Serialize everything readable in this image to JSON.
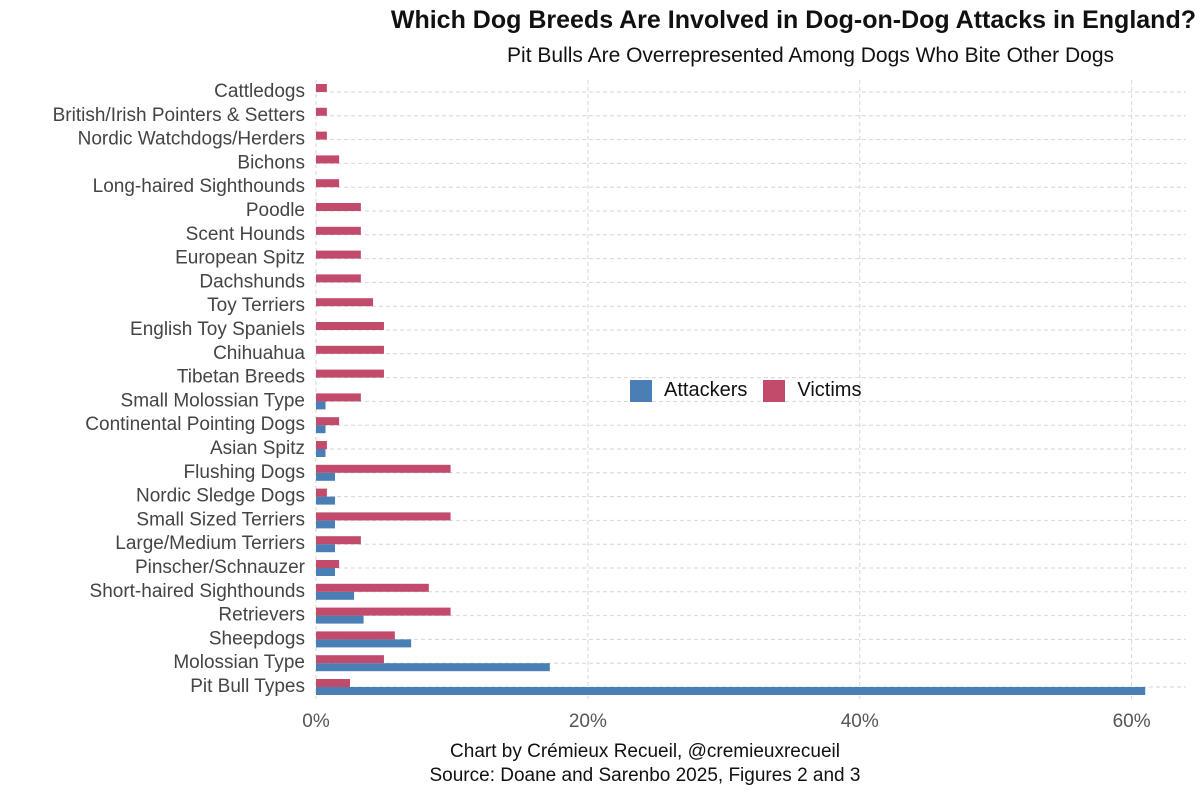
{
  "chart_data": {
    "type": "bar",
    "orientation": "horizontal",
    "title": "Which Dog Breeds Are Involved in Dog-on-Dog Attacks in England?",
    "subtitle": "Pit Bulls Are Overrepresented Among Dogs Who Bite Other Dogs",
    "categories": [
      "Pit Bull Types",
      "Molossian Type",
      "Sheepdogs",
      "Retrievers",
      "Short-haired Sighthounds",
      "Pinscher/Schnauzer",
      "Large/Medium Terriers",
      "Small Sized Terriers",
      "Nordic Sledge Dogs",
      "Flushing Dogs",
      "Asian Spitz",
      "Continental Pointing Dogs",
      "Small Molossian Type",
      "Tibetan Breeds",
      "Chihuahua",
      "English Toy Spaniels",
      "Toy Terriers",
      "Dachshunds",
      "European Spitz",
      "Scent Hounds",
      "Poodle",
      "Long-haired Sighthounds",
      "Bichons",
      "Nordic Watchdogs/Herders",
      "British/Irish Pointers & Setters",
      "Cattledogs"
    ],
    "series": [
      {
        "name": "Attackers",
        "color": "#4a7fb5",
        "values": [
          61.0,
          17.2,
          7.0,
          3.5,
          2.8,
          1.4,
          1.4,
          1.4,
          1.4,
          1.4,
          0.7,
          0.7,
          0.7,
          0,
          0,
          0,
          0,
          0,
          0,
          0,
          0,
          0,
          0,
          0,
          0,
          0
        ]
      },
      {
        "name": "Victims",
        "color": "#c24a6a",
        "values": [
          2.5,
          5.0,
          5.8,
          9.9,
          8.3,
          1.7,
          3.3,
          9.9,
          0.8,
          9.9,
          0.8,
          1.7,
          3.3,
          5.0,
          5.0,
          5.0,
          4.2,
          3.3,
          3.3,
          3.3,
          3.3,
          1.7,
          1.7,
          0.8,
          0.8,
          0.8
        ]
      }
    ],
    "xaxis": {
      "ticks": [
        0,
        20,
        40,
        60
      ],
      "tick_labels": [
        "0%",
        "20%",
        "40%",
        "60%"
      ],
      "xlim": [
        0,
        64
      ]
    },
    "legend_position": "center",
    "grid": true
  },
  "caption": {
    "line1": "Chart by Crémieux Recueil, @cremieuxrecueil",
    "line2": "Source: Doane and Sarenbo 2025, Figures 2 and 3"
  }
}
